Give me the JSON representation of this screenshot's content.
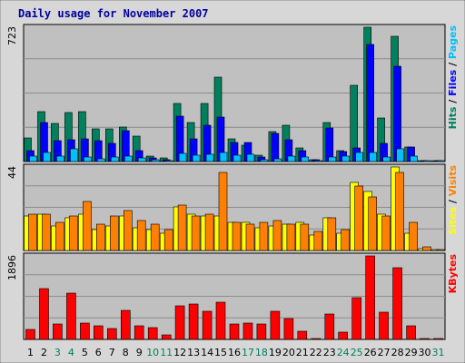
{
  "chart_data": {
    "type": "bar",
    "title": "Daily usage for November 2007",
    "x_labels": [
      "1",
      "2",
      "3",
      "4",
      "5",
      "6",
      "7",
      "8",
      "9",
      "10",
      "11",
      "12",
      "13",
      "14",
      "15",
      "16",
      "17",
      "18",
      "19",
      "20",
      "21",
      "22",
      "23",
      "24",
      "25",
      "26",
      "27",
      "28",
      "29",
      "30",
      "31"
    ],
    "weekend_days": [
      "3",
      "4",
      "10",
      "11",
      "17",
      "18",
      "24",
      "25",
      "31"
    ],
    "grid": true,
    "colors": {
      "hits": "#00805c",
      "files": "#0000ff",
      "pages": "#00c0ff",
      "sites": "#ffff00",
      "visits": "#ff8000",
      "kbytes": "#ff0000",
      "title": "#0000a0",
      "weekday_label": "#000000",
      "weekend_label": "#00805c",
      "panel_bg": "#c0c0c0",
      "frame_bg": "#d7d7d7"
    },
    "panels": [
      {
        "id": "hits-files-pages",
        "max_label": "723",
        "ylim": [
          0,
          723
        ],
        "series": [
          {
            "name": "Hits",
            "color": "#00805c",
            "values": [
              128,
              270,
              205,
              262,
              268,
              178,
              174,
              187,
              137,
              30,
              18,
              311,
              210,
              312,
              452,
              122,
              89,
              35,
              163,
              197,
              71,
              12,
              209,
              58,
              412,
              723,
              234,
              675,
              78,
              0,
              0
            ]
          },
          {
            "name": "Files",
            "color": "#0000ff",
            "values": [
              60,
              212,
              111,
              119,
              124,
              110,
              96,
              165,
              61,
              18,
              12,
              244,
              124,
              193,
              238,
              104,
              105,
              24,
              150,
              116,
              57,
              10,
              180,
              54,
              75,
              629,
              97,
              511,
              78,
              0,
              0
            ]
          },
          {
            "name": "Pages",
            "color": "#00c0ff",
            "values": [
              27,
              50,
              28,
              68,
              23,
              17,
              25,
              28,
              21,
              10,
              6,
              42,
              35,
              40,
              48,
              36,
              38,
              10,
              16,
              30,
              23,
              5,
              24,
              30,
              47,
              49,
              22,
              70,
              27,
              0,
              0
            ]
          }
        ],
        "legend": [
          "Hits",
          "Files",
          "Pages"
        ]
      },
      {
        "id": "sites-visits",
        "max_label": "44",
        "ylim": [
          0,
          44
        ],
        "series": [
          {
            "name": "Sites",
            "color": "#ffff00",
            "values": [
              18,
              19,
              13,
              17,
              19,
              11,
              13,
              18,
              12,
              11,
              9,
              23,
              19,
              18,
              18,
              15,
              15,
              12,
              13,
              14,
              15,
              8,
              17,
              9,
              36,
              31,
              19,
              44,
              9,
              1,
              0
            ]
          },
          {
            "name": "Visits",
            "color": "#ff8000",
            "values": [
              19,
              19,
              15,
              18,
              26,
              14,
              18,
              21,
              16,
              14,
              11,
              24,
              18,
              19,
              41,
              15,
              14,
              15,
              16,
              14,
              14,
              10,
              17,
              11,
              34,
              28,
              18,
              41,
              15,
              2,
              0
            ]
          }
        ],
        "legend": [
          "Sites",
          "Visits"
        ]
      },
      {
        "id": "kbytes",
        "max_label": "1896",
        "ylim": [
          0,
          1896
        ],
        "series": [
          {
            "name": "KBytes",
            "color": "#ff0000",
            "values": [
              222,
              1157,
              346,
              1056,
              376,
              313,
              238,
              653,
              312,
              272,
              106,
              764,
              794,
              643,
              841,
              358,
              377,
              349,
              630,
              481,
              194,
              30,
              569,
              169,
              945,
              1896,
              615,
              1638,
              307,
              0,
              0
            ]
          }
        ],
        "legend": [
          "KBytes"
        ]
      }
    ]
  }
}
